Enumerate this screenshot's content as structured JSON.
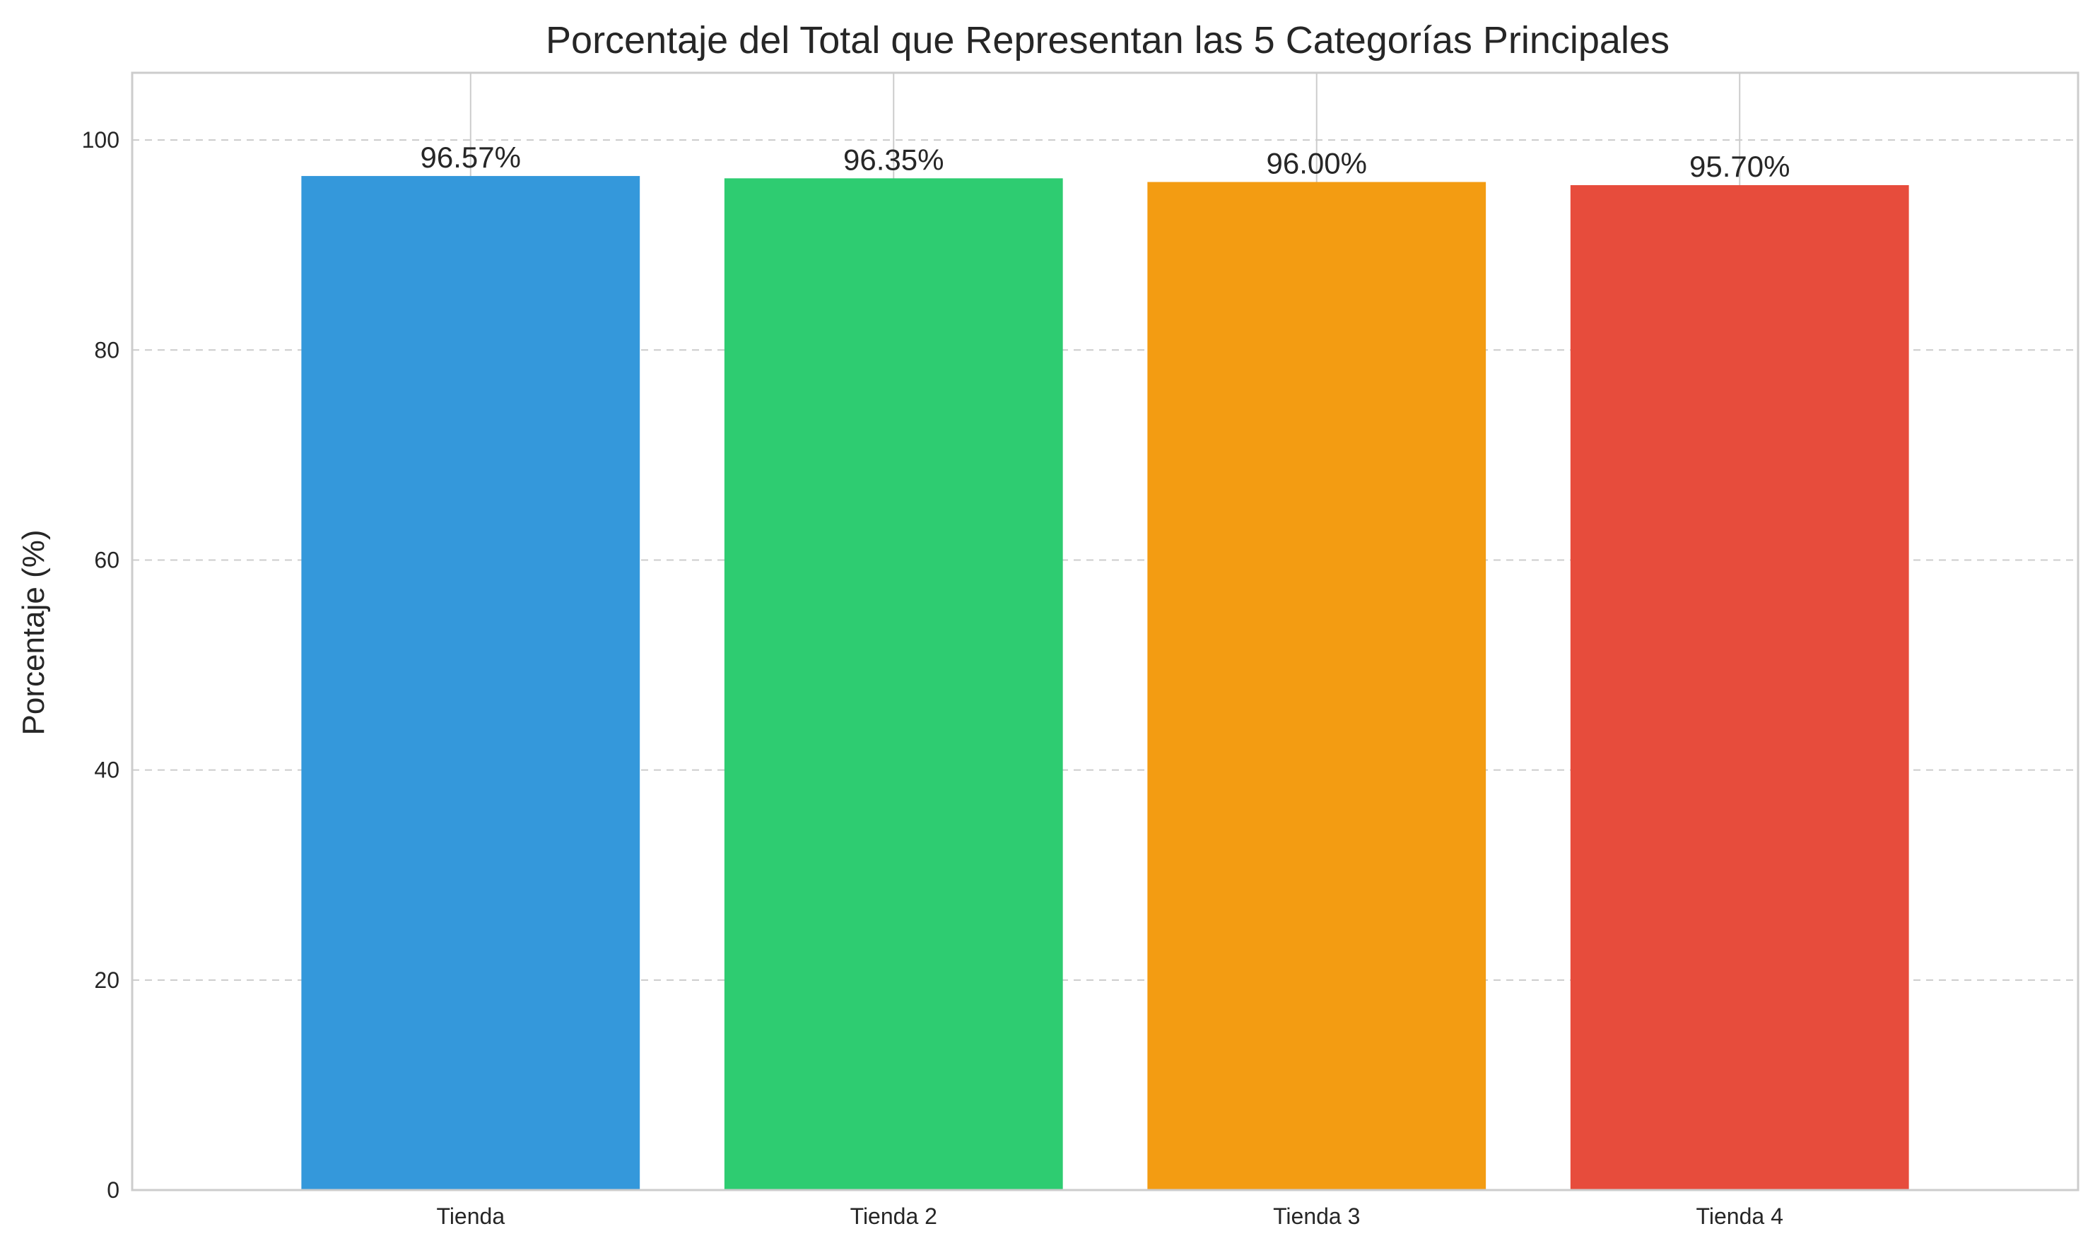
{
  "chart_data": {
    "type": "bar",
    "title": "Porcentaje del Total que Representan las 5 Categorías Principales",
    "xlabel": "",
    "ylabel": "Porcentaje (%)",
    "categories": [
      "Tienda",
      "Tienda 2",
      "Tienda 3",
      "Tienda 4"
    ],
    "values": [
      96.57,
      96.35,
      96.0,
      95.7
    ],
    "data_labels": [
      "96.57%",
      "96.35%",
      "96.00%",
      "95.70%"
    ],
    "colors": [
      "#3498db",
      "#2ecc71",
      "#f39c12",
      "#e74c3c"
    ],
    "ylim": [
      0,
      106.4
    ],
    "yticks": [
      0,
      20,
      40,
      60,
      80,
      100
    ],
    "ytick_labels": [
      "0",
      "20",
      "40",
      "60",
      "80",
      "100"
    ],
    "grid": {
      "y": "dashed",
      "x": "solid"
    },
    "legend": "none"
  }
}
